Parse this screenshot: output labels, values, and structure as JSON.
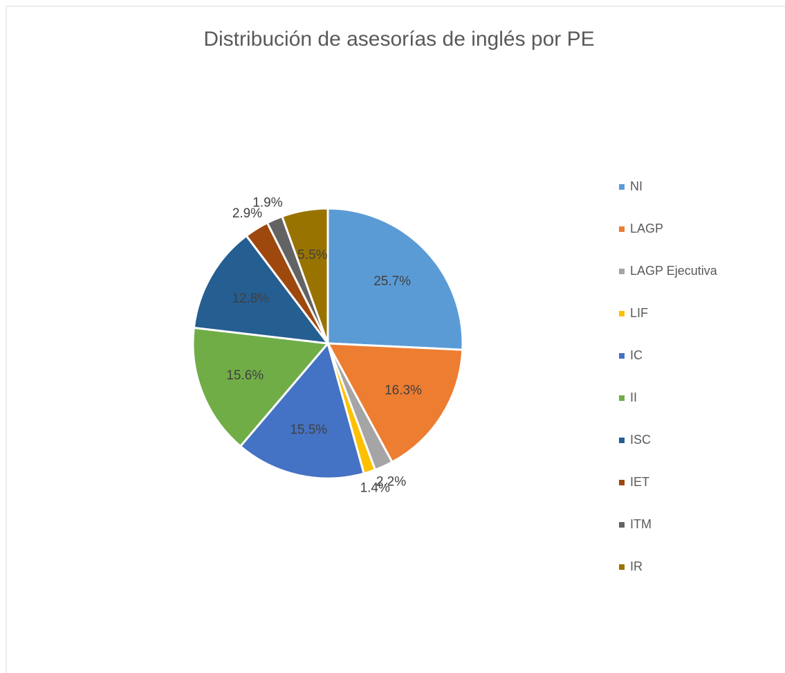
{
  "chart_data": {
    "type": "pie",
    "title": "Distribución de asesorías de inglés por PE",
    "categories": [
      "NI",
      "LAGP",
      "LAGP Ejecutiva",
      "LIF",
      "IC",
      "II",
      "ISC",
      "IET",
      "ITM",
      "IR"
    ],
    "values": [
      25.7,
      16.3,
      2.2,
      1.4,
      15.5,
      15.6,
      12.8,
      2.9,
      1.9,
      5.5
    ],
    "value_labels": [
      "25.7%",
      "16.3%",
      "2.2%",
      "1.4%",
      "15.5%",
      "15.6%",
      "12.8%",
      "2.9%",
      "1.9%",
      "5.5%"
    ],
    "colors": [
      "#5b9bd5",
      "#ed7d31",
      "#a5a5a5",
      "#ffc000",
      "#4472c4",
      "#70ad47",
      "#255e91",
      "#9e480e",
      "#636363",
      "#997300"
    ],
    "legend": "right"
  }
}
